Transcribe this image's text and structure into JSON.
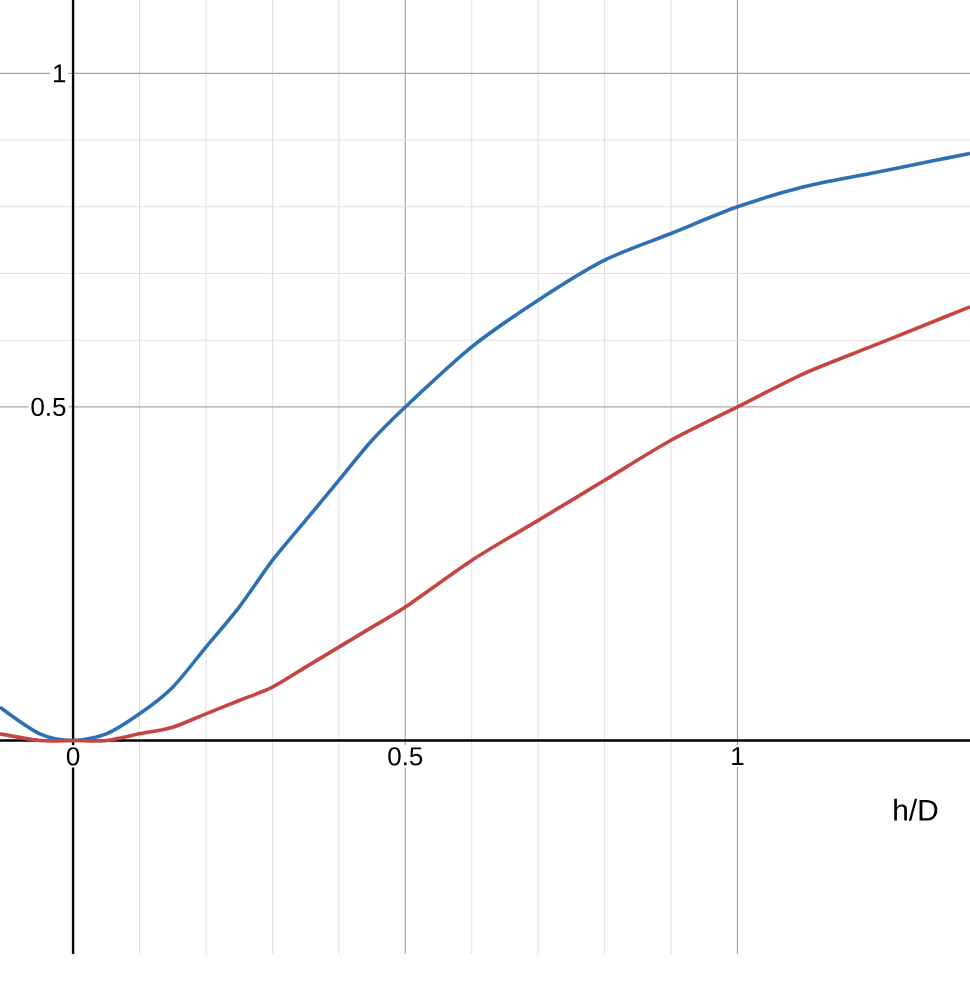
{
  "chart_data": {
    "type": "line",
    "xlabel": "h/D",
    "x": [
      -0.11,
      -0.05,
      0,
      0.05,
      0.1,
      0.15,
      0.2,
      0.25,
      0.3,
      0.35,
      0.4,
      0.45,
      0.5,
      0.6,
      0.7,
      0.8,
      0.9,
      1.0,
      1.1,
      1.2,
      1.3,
      1.35
    ],
    "series": [
      {
        "color": "#2d70b3",
        "values": [
          0.05,
          0.01,
          0,
          0.01,
          0.04,
          0.08,
          0.14,
          0.2,
          0.27,
          0.33,
          0.39,
          0.45,
          0.5,
          0.59,
          0.66,
          0.72,
          0.76,
          0.8,
          0.83,
          0.85,
          0.87,
          0.88
        ]
      },
      {
        "color": "#c74440",
        "values": [
          0.01,
          0.0,
          0,
          0.0,
          0.01,
          0.02,
          0.04,
          0.06,
          0.08,
          0.11,
          0.14,
          0.17,
          0.2,
          0.27,
          0.33,
          0.39,
          0.45,
          0.5,
          0.55,
          0.59,
          0.63,
          0.65
        ]
      }
    ],
    "xlim": [
      -0.11,
      1.35
    ],
    "ylim": [
      -0.32,
      1.11
    ],
    "xticks": [
      0,
      0.5,
      1
    ],
    "yticks": [
      0.5,
      1
    ],
    "grid": true,
    "marker": "none",
    "line_style": "solid"
  }
}
